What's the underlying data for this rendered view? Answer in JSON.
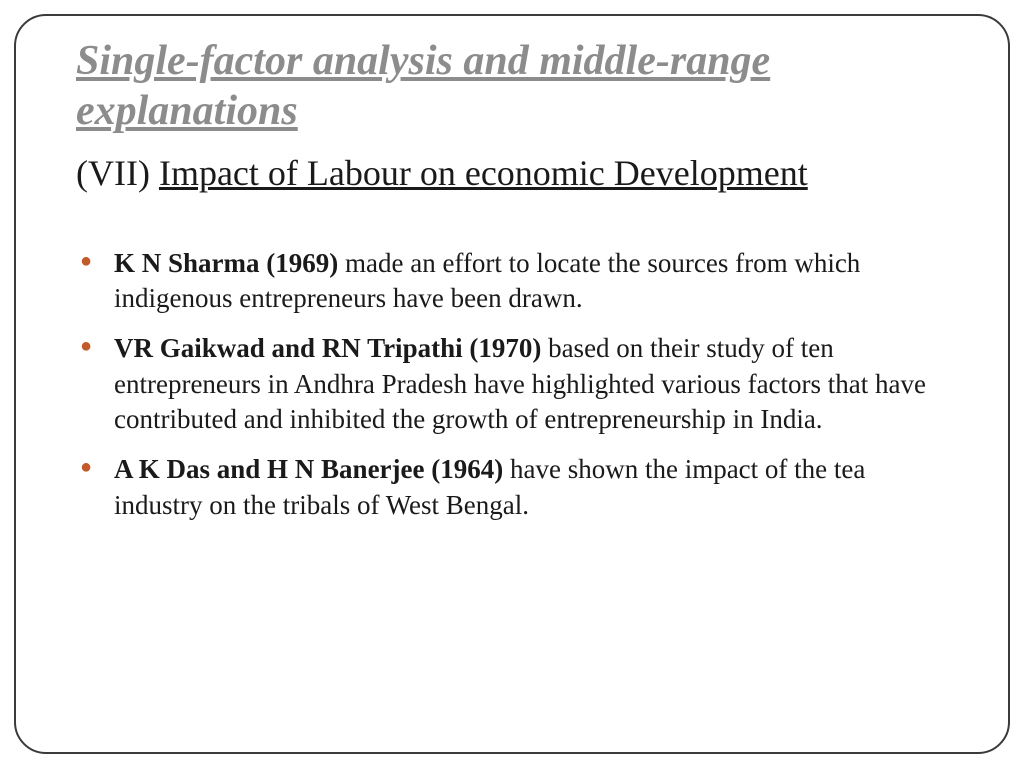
{
  "title": "Single-factor analysis and middle-range explanations",
  "subtitle": {
    "roman": "(VII) ",
    "underlined": "Impact of Labour on economic Development"
  },
  "bullets": [
    {
      "lead": "K N Sharma (1969) ",
      "rest": "made an effort to locate the sources from which indigenous entrepreneurs have been drawn."
    },
    {
      "lead": "VR Gaikwad and RN Tripathi (1970) ",
      "rest": "based on their study of ten entrepreneurs in Andhra Pradesh have highlighted various factors that have contributed and inhibited the growth of entrepreneurship in India."
    },
    {
      "lead": "A K Das and H N Banerjee (1964) ",
      "rest": "have shown the impact of the tea industry on the tribals of West Bengal."
    }
  ],
  "colors": {
    "title_color": "#8c8c8c",
    "body_color": "#1a1a1a",
    "bullet_color": "#c25a2a",
    "frame_border": "#3b3b3b",
    "background": "#ffffff"
  },
  "typography": {
    "title_fontsize": 42,
    "subtitle_fontsize": 36,
    "body_fontsize": 27,
    "font_family": "Garamond / Times New Roman (serif)"
  }
}
